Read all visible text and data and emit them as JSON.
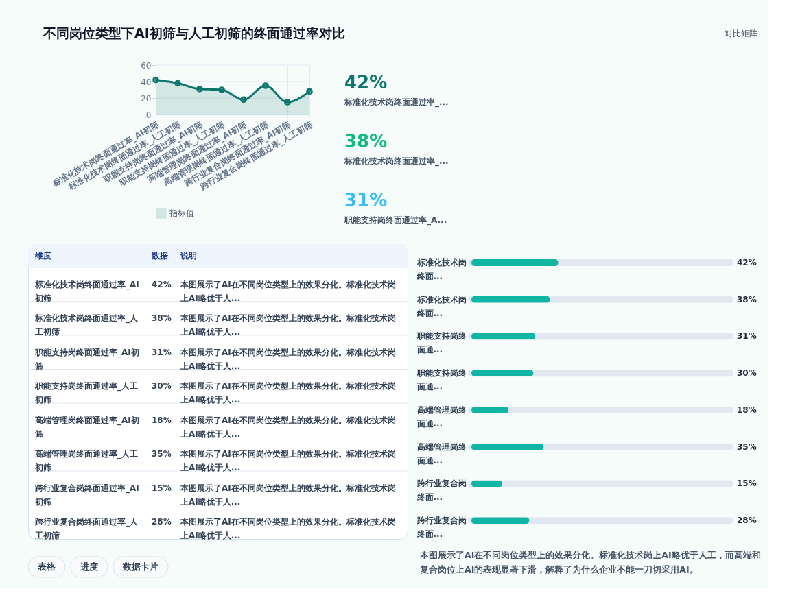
{
  "chart_data": [
    {
      "type": "other",
      "title": "不同岗位类型下AI初筛与人工初筛的终面通过率对比",
      "subtitle": "对比矩阵"
    },
    {
      "type": "area",
      "categories": [
        "标准化技术岗终面通过率_AI初筛",
        "标准化技术岗终面通过率_人工初筛",
        "职能支持岗终面通过率_AI初筛",
        "职能支持岗终面通过率_人工初筛",
        "高端管理岗终面通过率_AI初筛",
        "高端管理岗终面通过率_人工初筛",
        "跨行业复合岗终面通过率_AI初筛",
        "跨行业复合岗终面通过率_人工初筛"
      ],
      "series": [
        {
          "name": "指标值",
          "color": "#0f766e",
          "values": [
            42,
            38,
            31,
            30,
            18,
            35,
            15,
            28
          ]
        }
      ],
      "ylim": [
        0,
        60
      ],
      "yticks": [
        0,
        20,
        40,
        60
      ],
      "grid": true,
      "legend": "bottom",
      "marker": "circle"
    },
    {
      "type": "other",
      "categories": [
        "标准化技术岗终面通过率_...",
        "标准化技术岗终面通过率_...",
        "职能支持岗终面通过率_A..."
      ],
      "values": [
        42,
        38,
        31
      ],
      "value_labels": [
        "42%",
        "38%",
        "31%"
      ],
      "colors": [
        "#0f766e",
        "#10b981",
        "#38bdf8"
      ]
    },
    {
      "type": "other",
      "categories": [
        "标准化技术岗终面通过率_AI初筛",
        "标准化技术岗终面通过率_人工初筛",
        "职能支持岗终面通过率_AI初筛",
        "职能支持岗终面通过率_人工初筛",
        "高端管理岗终面通过率_AI初筛",
        "高端管理岗终面通过率_人工初筛",
        "跨行业复合岗终面通过率_AI初筛",
        "跨行业复合岗终面通过率_人工初筛"
      ],
      "values": [
        42,
        38,
        31,
        30,
        18,
        35,
        15,
        28
      ],
      "value_labels": [
        "42%",
        "38%",
        "31%",
        "30%",
        "18%",
        "35%",
        "15%",
        "28%"
      ],
      "annotations": [
        "维度",
        "数据",
        "说明",
        "本图展示了AI在不同岗位类型上的效果分化。标准化技术岗上AI略优于人...",
        "本图展示了AI在不同岗位类型上的效果分化。标准化技术岗上AI略优于人...",
        "本图展示了AI在不同岗位类型上的效果分化。标准化技术岗上AI略优于人...",
        "本图展示了AI在不同岗位类型上的效果分化。标准化技术岗上AI略优于人...",
        "本图展示了AI在不同岗位类型上的效果分化。标准化技术岗上AI略优于人...",
        "本图展示了AI在不同岗位类型上的效果分化。标准化技术岗上AI略优于人...",
        "本图展示了AI在不同岗位类型上的效果分化。标准化技术岗上AI略优于人...",
        "本图展示了AI在不同岗位类型上的效果分化。标准化技术岗上AI略优于人..."
      ]
    },
    {
      "type": "bar",
      "orientation": "horizontal",
      "categories": [
        "标准化技术岗终面...",
        "标准化技术岗终面...",
        "职能支持岗终面通...",
        "职能支持岗终面通...",
        "高端管理岗终面通...",
        "高端管理岗终面通...",
        "跨行业复合岗终面...",
        "跨行业复合岗终面..."
      ],
      "values": [
        42,
        38,
        31,
        30,
        18,
        35,
        15,
        28
      ],
      "value_labels": [
        "42%",
        "38%",
        "31%",
        "30%",
        "18%",
        "35%",
        "15%",
        "28%"
      ],
      "color": "#11b5a4",
      "xlim": [
        0,
        125
      ],
      "tick_labels": "y"
    },
    {
      "type": "other",
      "annotations": [
        "表格",
        "进度",
        "数据卡片",
        "本图展示了AI在不同岗位类型上的效果分化。标准化技术岗上AI略优于人工，而高端和复合岗位上AI的表现显著下滑，解释了为什么企业不能一刀切采用AI。"
      ]
    }
  ]
}
